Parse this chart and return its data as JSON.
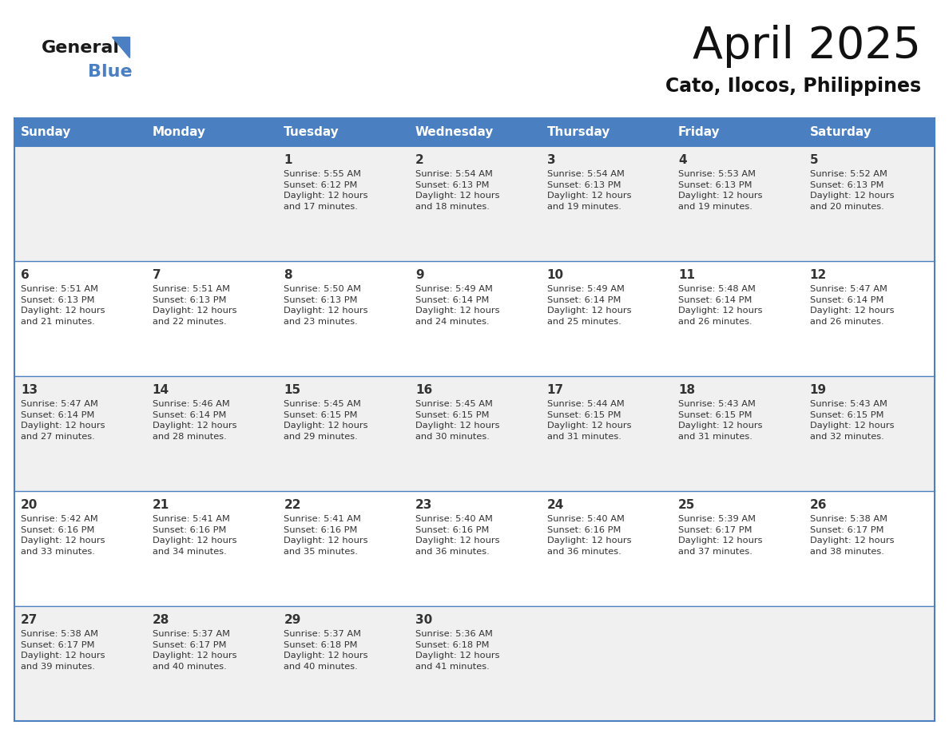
{
  "title": "April 2025",
  "subtitle": "Cato, Ilocos, Philippines",
  "days_of_week": [
    "Sunday",
    "Monday",
    "Tuesday",
    "Wednesday",
    "Thursday",
    "Friday",
    "Saturday"
  ],
  "header_bg": "#4A7FC1",
  "header_text_color": "#FFFFFF",
  "cell_bg_even": "#F0F0F0",
  "cell_bg_odd": "#FFFFFF",
  "cell_border_color": "#4A7FC1",
  "text_color": "#333333",
  "title_color": "#111111",
  "subtitle_color": "#111111",
  "calendar_data": [
    [
      "",
      "",
      "1\nSunrise: 5:55 AM\nSunset: 6:12 PM\nDaylight: 12 hours\nand 17 minutes.",
      "2\nSunrise: 5:54 AM\nSunset: 6:13 PM\nDaylight: 12 hours\nand 18 minutes.",
      "3\nSunrise: 5:54 AM\nSunset: 6:13 PM\nDaylight: 12 hours\nand 19 minutes.",
      "4\nSunrise: 5:53 AM\nSunset: 6:13 PM\nDaylight: 12 hours\nand 19 minutes.",
      "5\nSunrise: 5:52 AM\nSunset: 6:13 PM\nDaylight: 12 hours\nand 20 minutes."
    ],
    [
      "6\nSunrise: 5:51 AM\nSunset: 6:13 PM\nDaylight: 12 hours\nand 21 minutes.",
      "7\nSunrise: 5:51 AM\nSunset: 6:13 PM\nDaylight: 12 hours\nand 22 minutes.",
      "8\nSunrise: 5:50 AM\nSunset: 6:13 PM\nDaylight: 12 hours\nand 23 minutes.",
      "9\nSunrise: 5:49 AM\nSunset: 6:14 PM\nDaylight: 12 hours\nand 24 minutes.",
      "10\nSunrise: 5:49 AM\nSunset: 6:14 PM\nDaylight: 12 hours\nand 25 minutes.",
      "11\nSunrise: 5:48 AM\nSunset: 6:14 PM\nDaylight: 12 hours\nand 26 minutes.",
      "12\nSunrise: 5:47 AM\nSunset: 6:14 PM\nDaylight: 12 hours\nand 26 minutes."
    ],
    [
      "13\nSunrise: 5:47 AM\nSunset: 6:14 PM\nDaylight: 12 hours\nand 27 minutes.",
      "14\nSunrise: 5:46 AM\nSunset: 6:14 PM\nDaylight: 12 hours\nand 28 minutes.",
      "15\nSunrise: 5:45 AM\nSunset: 6:15 PM\nDaylight: 12 hours\nand 29 minutes.",
      "16\nSunrise: 5:45 AM\nSunset: 6:15 PM\nDaylight: 12 hours\nand 30 minutes.",
      "17\nSunrise: 5:44 AM\nSunset: 6:15 PM\nDaylight: 12 hours\nand 31 minutes.",
      "18\nSunrise: 5:43 AM\nSunset: 6:15 PM\nDaylight: 12 hours\nand 31 minutes.",
      "19\nSunrise: 5:43 AM\nSunset: 6:15 PM\nDaylight: 12 hours\nand 32 minutes."
    ],
    [
      "20\nSunrise: 5:42 AM\nSunset: 6:16 PM\nDaylight: 12 hours\nand 33 minutes.",
      "21\nSunrise: 5:41 AM\nSunset: 6:16 PM\nDaylight: 12 hours\nand 34 minutes.",
      "22\nSunrise: 5:41 AM\nSunset: 6:16 PM\nDaylight: 12 hours\nand 35 minutes.",
      "23\nSunrise: 5:40 AM\nSunset: 6:16 PM\nDaylight: 12 hours\nand 36 minutes.",
      "24\nSunrise: 5:40 AM\nSunset: 6:16 PM\nDaylight: 12 hours\nand 36 minutes.",
      "25\nSunrise: 5:39 AM\nSunset: 6:17 PM\nDaylight: 12 hours\nand 37 minutes.",
      "26\nSunrise: 5:38 AM\nSunset: 6:17 PM\nDaylight: 12 hours\nand 38 minutes."
    ],
    [
      "27\nSunrise: 5:38 AM\nSunset: 6:17 PM\nDaylight: 12 hours\nand 39 minutes.",
      "28\nSunrise: 5:37 AM\nSunset: 6:17 PM\nDaylight: 12 hours\nand 40 minutes.",
      "29\nSunrise: 5:37 AM\nSunset: 6:18 PM\nDaylight: 12 hours\nand 40 minutes.",
      "30\nSunrise: 5:36 AM\nSunset: 6:18 PM\nDaylight: 12 hours\nand 41 minutes.",
      "",
      "",
      ""
    ]
  ],
  "logo_text_general": "General",
  "logo_text_blue": "Blue",
  "logo_color_general": "#1a1a1a",
  "logo_color_blue": "#4A7FC1",
  "logo_triangle_color": "#4A7FC1",
  "figwidth": 11.88,
  "figheight": 9.18,
  "dpi": 100
}
